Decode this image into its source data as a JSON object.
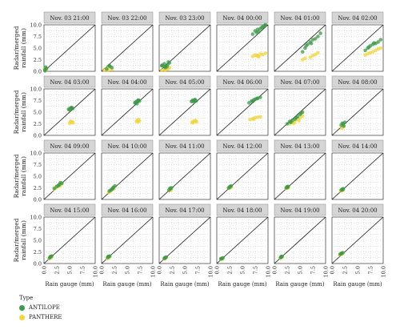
{
  "chart_data": {
    "type": "scatter",
    "layout": "facet-grid",
    "xlabel": "Rain gauge (mm)",
    "ylabel": "Radar/merged rainfall (mm)",
    "xlim": [
      0,
      10
    ],
    "ylim": [
      0,
      10
    ],
    "x_ticks": [
      "0.0",
      "2.5",
      "5.0",
      "7.5",
      "10.0"
    ],
    "y_ticks": [
      "0.0",
      "2.5",
      "5.0",
      "7.5",
      "10.0"
    ],
    "reference_line": "y = x",
    "legend": {
      "title": "Type",
      "position": "bottom-left"
    },
    "series": [
      {
        "name": "ANTILOPE",
        "color": "#3a9a46"
      },
      {
        "name": "PANTHERE",
        "color": "#f2d43b"
      }
    ],
    "panels": [
      {
        "label": "Nov. 03 21:00",
        "points": [
          [
            0.2,
            0.3,
            0.3,
            0.9,
            0.2,
            0.1,
            0.5,
            0.6
          ],
          [
            0.3,
            0.2,
            0.1,
            0.5,
            0.3,
            0.4
          ]
        ]
      },
      {
        "label": "Nov. 03 22:00",
        "points": [
          [
            1.0,
            0.5,
            1.5,
            1.2,
            2.0,
            0.8,
            1.6,
            1.1
          ],
          [
            0.5,
            0.3,
            1.0,
            0.6,
            1.6,
            0.8,
            2.0,
            0.4,
            1.2,
            0.2
          ]
        ]
      },
      {
        "label": "Nov. 03 23:00",
        "points": [
          [
            0.5,
            1.2,
            1.0,
            1.6,
            1.5,
            1.0,
            2.0,
            1.8,
            1.2,
            0.8,
            0.6,
            1.3,
            1.6,
            1.4,
            1.8,
            2.0,
            1.1,
            1.0
          ],
          [
            0.5,
            0.2,
            1.0,
            0.4,
            1.5,
            0.5,
            2.0,
            0.8,
            1.2,
            0.3,
            1.8,
            0.6
          ]
        ]
      },
      {
        "label": "Nov. 04 00:00",
        "points": [
          [
            7.0,
            8.0,
            7.5,
            8.7,
            8.0,
            9.0,
            8.5,
            9.2,
            9.0,
            9.6,
            9.5,
            10.0,
            8.2,
            8.5,
            7.8,
            8.3,
            9.3,
            9.8,
            8.8,
            9.4
          ],
          [
            7.0,
            3.2,
            7.5,
            3.5,
            8.0,
            3.3,
            8.5,
            3.7,
            9.0,
            3.6,
            9.5,
            3.9,
            8.2,
            3.1,
            7.8,
            3.4
          ]
        ]
      },
      {
        "label": "Nov. 04 01:00",
        "points": [
          [
            5.5,
            4.2,
            6.0,
            5.0,
            6.5,
            5.8,
            7.0,
            6.3,
            7.5,
            6.8,
            8.0,
            7.0,
            8.5,
            7.5,
            9.0,
            8.2,
            6.2,
            5.5,
            7.2,
            6.0
          ],
          [
            5.5,
            2.5,
            6.0,
            2.8,
            7.0,
            3.0,
            7.5,
            3.4,
            8.0,
            3.6,
            8.5,
            4.0
          ]
        ]
      },
      {
        "label": "Nov. 04 02:00",
        "points": [
          [
            6.5,
            4.5,
            7.0,
            5.0,
            7.5,
            5.5,
            8.0,
            5.8,
            8.5,
            6.0,
            9.0,
            6.3,
            9.5,
            6.8,
            7.2,
            5.2,
            8.2,
            6.1
          ],
          [
            6.5,
            3.5,
            7.0,
            3.8,
            7.5,
            4.0,
            8.0,
            4.2,
            8.5,
            4.5,
            9.0,
            4.8,
            9.5,
            5.0
          ]
        ]
      },
      {
        "label": "Nov. 04 03:00",
        "points": [
          [
            4.8,
            5.6,
            5.1,
            5.8,
            5.3,
            5.9,
            5.6,
            5.8,
            5.0,
            5.5,
            5.4,
            6.0
          ],
          [
            5.0,
            2.6,
            5.3,
            2.8,
            5.5,
            2.9,
            5.7,
            2.7,
            5.2,
            3.0
          ]
        ]
      },
      {
        "label": "Nov. 04 04:00",
        "points": [
          [
            6.5,
            7.0,
            6.8,
            7.3,
            7.0,
            7.2,
            7.2,
            7.6,
            6.9,
            6.8,
            7.4,
            7.4,
            6.6,
            7.1,
            7.1,
            7.5
          ],
          [
            6.8,
            3.0,
            7.0,
            3.2,
            7.2,
            3.4,
            7.4,
            3.1,
            7.1,
            2.9
          ]
        ]
      },
      {
        "label": "Nov. 04 05:00",
        "points": [
          [
            6.3,
            7.3,
            6.6,
            7.5,
            6.9,
            7.6,
            7.2,
            7.4,
            6.5,
            7.5,
            7.0,
            7.7,
            6.8,
            7.2
          ],
          [
            6.4,
            2.8,
            6.7,
            3.0,
            7.0,
            3.1,
            7.3,
            2.9,
            6.6,
            2.7,
            7.1,
            3.2
          ]
        ]
      },
      {
        "label": "Nov. 04 06:00",
        "points": [
          [
            6.3,
            7.0,
            6.8,
            7.4,
            7.2,
            7.6,
            7.5,
            7.8,
            8.0,
            8.0,
            8.5,
            8.2,
            7.0,
            7.3,
            7.8,
            7.9
          ],
          [
            6.5,
            3.4,
            7.0,
            3.6,
            7.5,
            3.8,
            8.0,
            3.9,
            8.5,
            4.0,
            7.2,
            3.5
          ]
        ]
      },
      {
        "label": "Nov. 04 07:00",
        "points": [
          [
            2.5,
            2.5,
            3.0,
            3.0,
            3.5,
            3.2,
            4.0,
            3.5,
            4.5,
            4.0,
            5.0,
            4.5,
            5.5,
            5.0,
            4.2,
            3.8,
            3.2,
            2.8,
            5.2,
            4.8
          ],
          [
            3.0,
            2.5,
            3.5,
            2.8,
            4.0,
            3.0,
            4.5,
            3.5,
            5.0,
            3.8,
            5.5,
            4.2,
            3.8,
            2.6,
            4.8,
            3.2
          ]
        ]
      },
      {
        "label": "Nov. 04 08:00",
        "points": [
          [
            1.8,
            2.2,
            2.2,
            2.5,
            2.5,
            2.8,
            2.0,
            2.6,
            2.3,
            2.0
          ],
          [
            1.9,
            1.5,
            2.1,
            1.8,
            2.3,
            2.0
          ]
        ]
      },
      {
        "label": "Nov. 04 09:00",
        "points": [
          [
            2.0,
            2.4,
            2.5,
            2.8,
            3.0,
            3.2,
            3.5,
            3.5,
            2.8,
            3.0,
            3.2,
            3.6
          ],
          [
            2.0,
            2.2,
            2.6,
            2.7,
            3.0,
            2.9,
            3.4,
            3.3,
            2.4,
            2.8,
            3.2,
            3.0
          ]
        ]
      },
      {
        "label": "Nov. 04 10:00",
        "points": [
          [
            1.5,
            1.8,
            2.0,
            2.2,
            2.3,
            2.6,
            2.6,
            2.9,
            1.8,
            2.0,
            2.2,
            2.4
          ],
          [
            1.4,
            1.5,
            1.8,
            1.9,
            2.1,
            2.2,
            2.4,
            2.3,
            1.6,
            1.7
          ]
        ]
      },
      {
        "label": "Nov. 04 11:00",
        "points": [
          [
            1.9,
            2.0,
            2.2,
            2.3,
            2.4,
            2.5,
            2.1,
            2.4
          ],
          [
            2.0,
            1.9,
            2.2,
            2.1,
            2.3,
            2.0
          ]
        ]
      },
      {
        "label": "Nov. 04 12:00",
        "points": [
          [
            2.3,
            2.5,
            2.6,
            2.8,
            2.8,
            2.9,
            2.5,
            2.6
          ],
          [
            2.4,
            2.4,
            2.6,
            2.5,
            2.8,
            2.6
          ]
        ]
      },
      {
        "label": "Nov. 04 13:00",
        "points": [
          [
            2.3,
            2.5,
            2.5,
            2.7,
            2.7,
            2.8,
            2.6,
            2.6
          ],
          [
            2.3,
            2.4,
            2.5,
            2.6,
            2.7,
            2.5,
            2.4,
            2.7
          ]
        ]
      },
      {
        "label": "Nov. 04 14:00",
        "points": [
          [
            1.8,
            2.0,
            2.0,
            2.2,
            2.2,
            2.3,
            2.1,
            2.1
          ],
          [
            1.7,
            1.8,
            1.9,
            2.0,
            2.1,
            2.0,
            2.0,
            1.9
          ]
        ]
      },
      {
        "label": "Nov. 04 15:00",
        "points": [
          [
            1.1,
            1.2,
            1.3,
            1.5,
            1.5,
            1.6,
            1.2,
            1.4
          ],
          [
            1.0,
            1.1,
            1.2,
            1.3,
            1.4,
            1.2,
            1.3,
            1.5
          ]
        ]
      },
      {
        "label": "Nov. 04 16:00",
        "points": [
          [
            1.2,
            1.3,
            1.4,
            1.5,
            1.6,
            1.6,
            1.3,
            1.5
          ],
          [
            1.1,
            1.2,
            1.3,
            1.3,
            1.5,
            1.4,
            1.4,
            1.2
          ]
        ]
      },
      {
        "label": "Nov. 04 17:00",
        "points": [
          [
            1.0,
            1.1,
            1.2,
            1.3,
            1.4,
            1.4,
            1.1,
            1.2
          ],
          [
            1.0,
            1.0,
            1.2,
            1.1,
            1.3,
            1.2
          ]
        ]
      },
      {
        "label": "Nov. 04 18:00",
        "points": [
          [
            0.8,
            1.0,
            1.0,
            1.1,
            1.2,
            1.2,
            0.9,
            1.1
          ],
          [
            0.8,
            0.9,
            1.0,
            1.0,
            1.1,
            1.0
          ]
        ]
      },
      {
        "label": "Nov. 04 19:00",
        "points": [
          [
            1.2,
            1.3,
            1.4,
            1.5,
            1.5,
            1.5,
            1.3,
            1.4
          ],
          [
            1.2,
            1.2,
            1.3,
            1.4,
            1.5,
            1.4
          ]
        ]
      },
      {
        "label": "Nov. 04 20:00",
        "points": [
          [
            1.6,
            2.0,
            1.9,
            2.2,
            2.1,
            2.3,
            1.8,
            2.1
          ],
          [
            1.5,
            1.9,
            1.8,
            2.2,
            2.0,
            2.3,
            2.1,
            2.2,
            1.9,
            2.0
          ]
        ]
      }
    ]
  }
}
